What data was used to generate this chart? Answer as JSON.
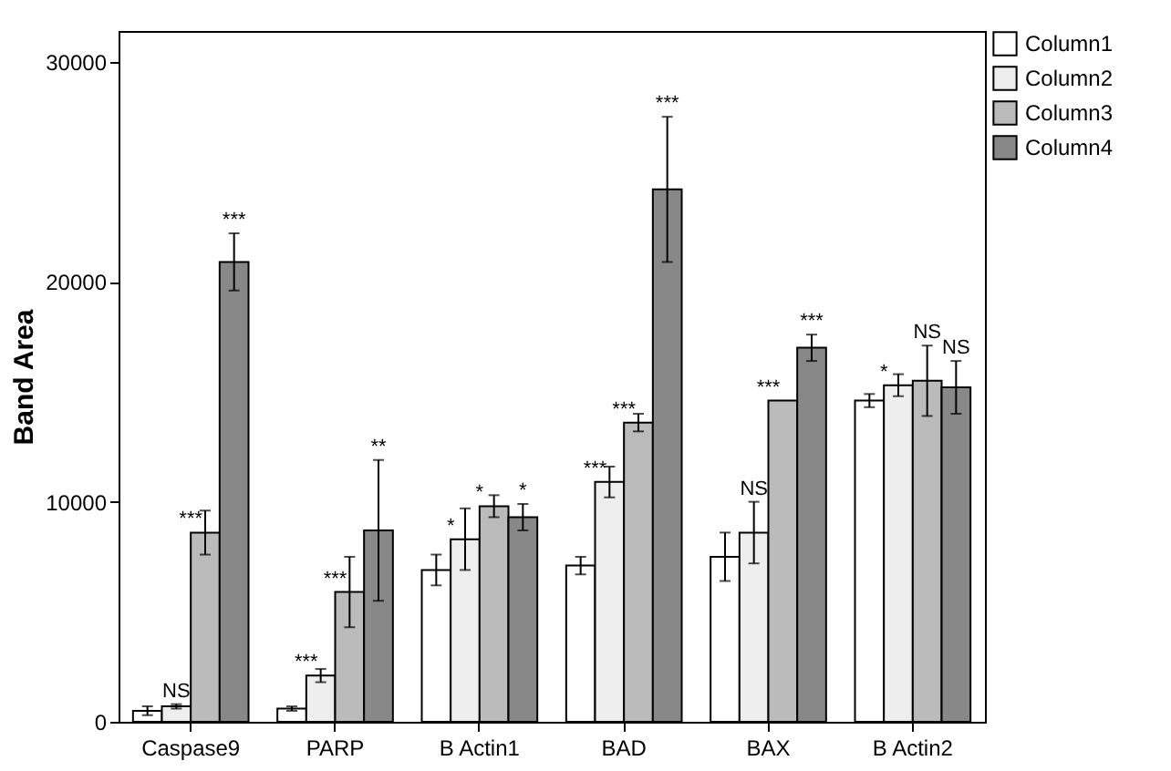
{
  "chart_data": {
    "type": "bar",
    "ylabel": "Band Area",
    "categories": [
      "Caspase9",
      "PARP",
      "B  Actin1",
      "BAD",
      "BAX",
      "B  Actin2"
    ],
    "series": [
      {
        "name": "Column1",
        "color": "#ffffff",
        "values": [
          500,
          600,
          6900,
          7100,
          7500,
          14600
        ],
        "errors": [
          200,
          100,
          700,
          400,
          1100,
          300
        ]
      },
      {
        "name": "Column2",
        "color": "#eeeeee",
        "values": [
          700,
          2100,
          8300,
          10900,
          8600,
          15300
        ],
        "errors": [
          100,
          300,
          1400,
          700,
          1400,
          500
        ]
      },
      {
        "name": "Column3",
        "color": "#bbbbbb",
        "values": [
          8600,
          5900,
          9800,
          13600,
          14600,
          15500
        ],
        "errors": [
          1000,
          1600,
          500,
          400,
          null,
          1600
        ]
      },
      {
        "name": "Column4",
        "color": "#888888",
        "values": [
          20900,
          8700,
          9300,
          24200,
          17000,
          15200
        ],
        "errors": [
          1300,
          3200,
          600,
          3300,
          600,
          1200
        ]
      }
    ],
    "ylim": [
      0,
      31400
    ],
    "yticks": [
      0,
      10000,
      20000,
      30000
    ],
    "grid": false,
    "legend": "top right",
    "annotations": [
      {
        "text": "NS",
        "x": "Caspase9",
        "y": 700
      },
      {
        "text": "***",
        "x": "Caspase9",
        "y": 8600
      },
      "***",
      {
        "text": "***",
        "x": "PARP",
        "y": 2100
      },
      {
        "text": "***",
        "x": "PARP",
        "y": 5900
      },
      "**",
      {
        "text": "*",
        "x": "B  Actin1",
        "y": 8300
      },
      {
        "text": "*",
        "x": "B  Actin1",
        "y": 9800
      },
      {
        "text": "*",
        "x": "B  Actin1",
        "y": 9300
      },
      {
        "text": "***",
        "x": "BAD",
        "y": 10900
      },
      {
        "text": "***",
        "x": "BAD",
        "y": 13600
      },
      "***",
      {
        "text": "NS",
        "x": "BAX",
        "y": 8600
      },
      {
        "text": "***",
        "x": "BAX",
        "y": 14600
      },
      "***",
      {
        "text": "*",
        "x": "B  Actin2",
        "y": 15300
      },
      {
        "text": "NS",
        "x": "B  Actin2",
        "y": 15500
      },
      {
        "text": "NS",
        "x": "B  Actin2",
        "y": 15200
      }
    ]
  }
}
